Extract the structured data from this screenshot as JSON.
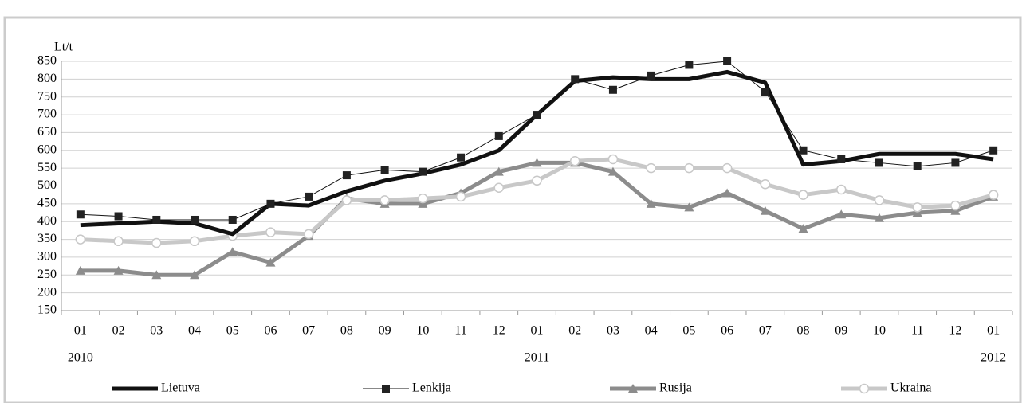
{
  "chart_data": {
    "type": "line",
    "y_label": "Lt/t",
    "categories": [
      "01",
      "02",
      "03",
      "04",
      "05",
      "06",
      "07",
      "08",
      "09",
      "10",
      "11",
      "12",
      "01",
      "02",
      "03",
      "04",
      "05",
      "06",
      "07",
      "08",
      "09",
      "10",
      "11",
      "12",
      "01"
    ],
    "years": [
      "2010",
      null,
      null,
      null,
      null,
      null,
      null,
      null,
      null,
      null,
      null,
      null,
      "2011",
      null,
      null,
      null,
      null,
      null,
      null,
      null,
      null,
      null,
      null,
      null,
      "2012"
    ],
    "ylim": [
      150,
      850
    ],
    "yticks": [
      150,
      200,
      250,
      300,
      350,
      400,
      450,
      500,
      550,
      600,
      650,
      700,
      750,
      800,
      850
    ],
    "grid": true,
    "legend": "bottom",
    "series": [
      {
        "name": "Lietuva",
        "color": "#111111",
        "marker": "none",
        "width": 5,
        "values": [
          390,
          395,
          400,
          395,
          365,
          450,
          445,
          485,
          515,
          535,
          560,
          600,
          700,
          795,
          805,
          800,
          800,
          820,
          790,
          560,
          570,
          590,
          590,
          590,
          575
        ]
      },
      {
        "name": "Lenkija",
        "color": "#111111",
        "marker": "square",
        "width": 1,
        "values": [
          420,
          415,
          405,
          405,
          405,
          450,
          470,
          530,
          545,
          540,
          580,
          640,
          700,
          800,
          770,
          810,
          840,
          850,
          765,
          600,
          575,
          565,
          555,
          565,
          600
        ]
      },
      {
        "name": "Rusija",
        "color": "#8c8c8c",
        "marker": "triangle",
        "width": 5,
        "values": [
          262,
          262,
          250,
          250,
          315,
          285,
          360,
          465,
          450,
          450,
          480,
          540,
          565,
          565,
          540,
          450,
          440,
          480,
          430,
          380,
          420,
          410,
          425,
          430,
          470
        ]
      },
      {
        "name": "Ukraina",
        "color": "#c8c8c8",
        "marker": "circle",
        "width": 5,
        "values": [
          350,
          345,
          340,
          345,
          360,
          370,
          365,
          460,
          460,
          465,
          470,
          495,
          515,
          570,
          575,
          550,
          550,
          550,
          505,
          475,
          490,
          460,
          440,
          445,
          475
        ]
      }
    ]
  }
}
